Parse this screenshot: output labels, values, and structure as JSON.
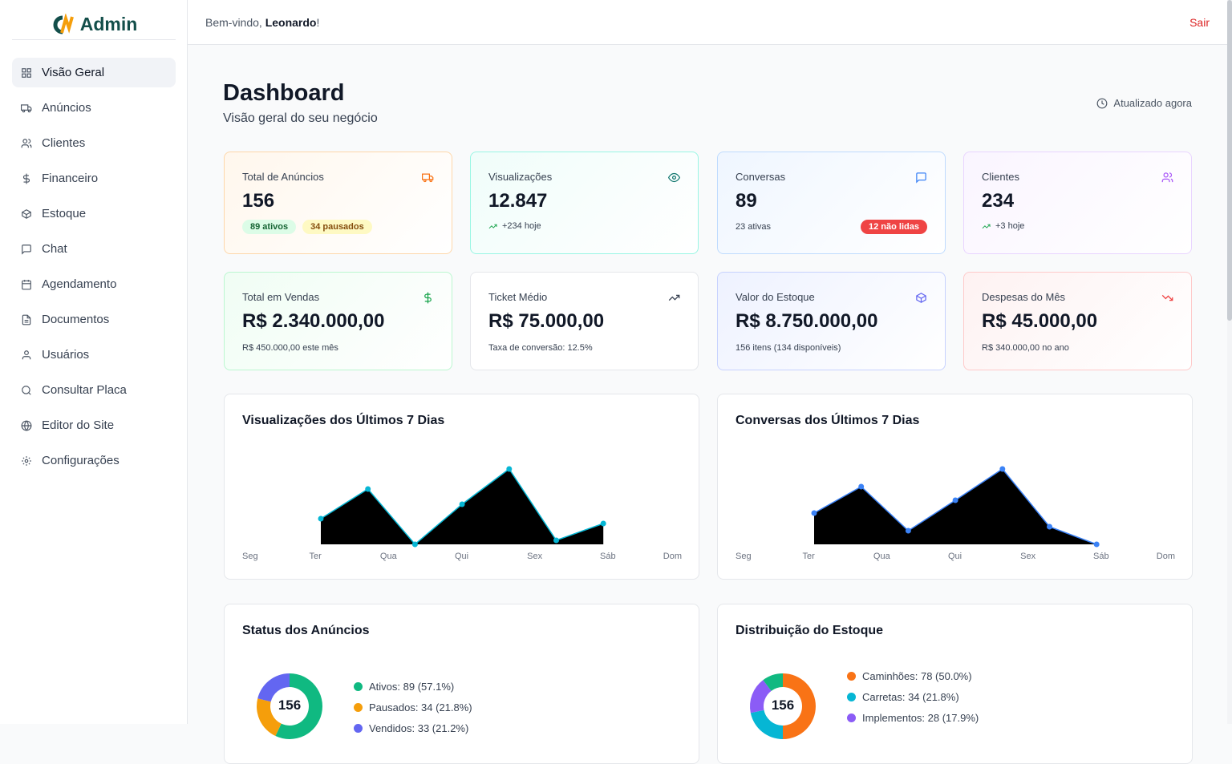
{
  "brand": {
    "logo_text": "Admin",
    "logo_mark": "CN"
  },
  "sidebar": {
    "items": [
      {
        "label": "Visão Geral",
        "icon": "grid-icon"
      },
      {
        "label": "Anúncios",
        "icon": "truck-icon"
      },
      {
        "label": "Clientes",
        "icon": "users-icon"
      },
      {
        "label": "Financeiro",
        "icon": "dollar-icon"
      },
      {
        "label": "Estoque",
        "icon": "package-icon"
      },
      {
        "label": "Chat",
        "icon": "message-icon"
      },
      {
        "label": "Agendamento",
        "icon": "calendar-icon"
      },
      {
        "label": "Documentos",
        "icon": "file-icon"
      },
      {
        "label": "Usuários",
        "icon": "user-icon"
      },
      {
        "label": "Consultar Placa",
        "icon": "search-icon"
      },
      {
        "label": "Editor do Site",
        "icon": "globe-icon"
      },
      {
        "label": "Configurações",
        "icon": "gear-icon"
      }
    ]
  },
  "header": {
    "welcome": "Bem-vindo, ",
    "user": "Leonardo",
    "suffix": "!",
    "logout": "Sair"
  },
  "page": {
    "title": "Dashboard",
    "subtitle": "Visão geral do seu negócio",
    "updated": "Atualizado agora"
  },
  "stats": [
    {
      "label": "Total de Anúncios",
      "value": "156",
      "badge1": "89 ativos",
      "badge2": "34 pausados",
      "color": "#f97316"
    },
    {
      "label": "Visualizações",
      "value": "12.847",
      "sub": "+234 hoje",
      "color": "#0f766e"
    },
    {
      "label": "Conversas",
      "value": "89",
      "sub": "23 ativas",
      "badge": "12 não lidas",
      "color": "#3b82f6"
    },
    {
      "label": "Clientes",
      "value": "234",
      "sub": "+3 hoje",
      "color": "#a855f7"
    },
    {
      "label": "Total em Vendas",
      "value": "R$ 2.340.000,00",
      "sub": "R$ 450.000,00 este mês",
      "color": "#16a34a"
    },
    {
      "label": "Ticket Médio",
      "value": "R$ 75.000,00",
      "sub": "Taxa de conversão: 12.5%",
      "color": "#374151"
    },
    {
      "label": "Valor do Estoque",
      "value": "R$ 8.750.000,00",
      "sub": "156 itens (134 disponíveis)",
      "color": "#6366f1"
    },
    {
      "label": "Despesas do Mês",
      "value": "R$ 45.000,00",
      "sub": "R$ 340.000,00 no ano",
      "color": "#ef4444"
    }
  ],
  "chart_data": [
    {
      "type": "area",
      "title": "Visualizações dos Últimos 7 Dias",
      "categories": [
        "Seg",
        "Ter",
        "Qua",
        "Qui",
        "Sex",
        "Sáb",
        "Dom"
      ],
      "values": [
        32,
        69,
        0,
        50,
        94,
        5,
        26
      ],
      "color": "#06b6d4",
      "fill": "#000000"
    },
    {
      "type": "area",
      "title": "Conversas dos Últimos 7 Dias",
      "categories": [
        "Seg",
        "Ter",
        "Qua",
        "Qui",
        "Sex",
        "Sáb",
        "Dom"
      ],
      "values": [
        39,
        72,
        17,
        55,
        94,
        22,
        0
      ],
      "color": "#3b82f6",
      "fill": "#000000"
    },
    {
      "type": "pie",
      "title": "Status dos Anúncios",
      "total": "156",
      "slices": [
        {
          "label": "Ativos: 89 (57.1%)",
          "value": 89,
          "color": "#10b981"
        },
        {
          "label": "Pausados: 34 (21.8%)",
          "value": 34,
          "color": "#f59e0b"
        },
        {
          "label": "Vendidos: 33 (21.2%)",
          "value": 33,
          "color": "#6366f1"
        }
      ]
    },
    {
      "type": "pie",
      "title": "Distribuição do Estoque",
      "total": "156",
      "slices": [
        {
          "label": "Caminhões: 78 (50.0%)",
          "value": 78,
          "color": "#f97316"
        },
        {
          "label": "Carretas: 34 (21.8%)",
          "value": 34,
          "color": "#06b6d4"
        },
        {
          "label": "Implementos: 28 (17.9%)",
          "value": 28,
          "color": "#8b5cf6"
        },
        {
          "label": "",
          "value": 16,
          "color": "#10b981"
        }
      ]
    }
  ]
}
